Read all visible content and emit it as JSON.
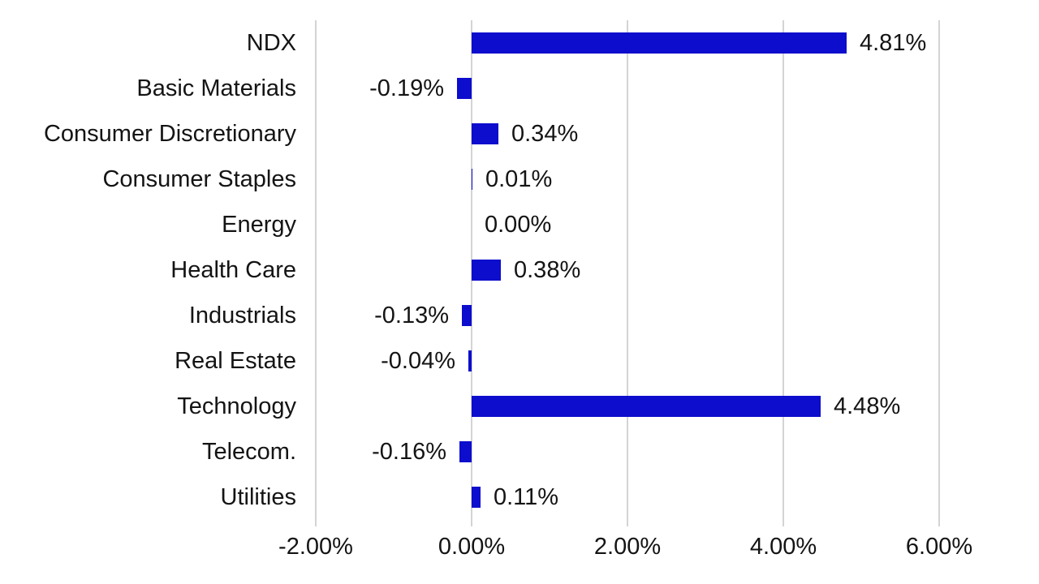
{
  "chart_data": {
    "type": "bar",
    "orientation": "horizontal",
    "title": "",
    "xlabel": "",
    "ylabel": "",
    "categories": [
      "NDX",
      "Basic Materials",
      "Consumer Discretionary",
      "Consumer Staples",
      "Energy",
      "Health Care",
      "Industrials",
      "Real Estate",
      "Technology",
      "Telecom.",
      "Utilities"
    ],
    "values": [
      4.81,
      -0.19,
      0.34,
      0.01,
      0.0,
      0.38,
      -0.13,
      -0.04,
      4.48,
      -0.16,
      0.11
    ],
    "value_labels": [
      "4.81%",
      "-0.19%",
      "0.34%",
      "0.01%",
      "0.00%",
      "0.38%",
      "-0.13%",
      "-0.04%",
      "4.48%",
      "-0.16%",
      "0.11%"
    ],
    "xlim": [
      -2,
      6
    ],
    "x_ticks": [
      -2,
      0,
      2,
      4,
      6
    ],
    "x_tick_labels": [
      "-2.00%",
      "0.00%",
      "2.00%",
      "4.00%",
      "6.00%"
    ],
    "grid": true,
    "legend": false,
    "colors": {
      "bar": "#0D0DCD",
      "gridline": "#D4D4D4",
      "text": "#141414",
      "background": "#FFFFFF"
    }
  }
}
